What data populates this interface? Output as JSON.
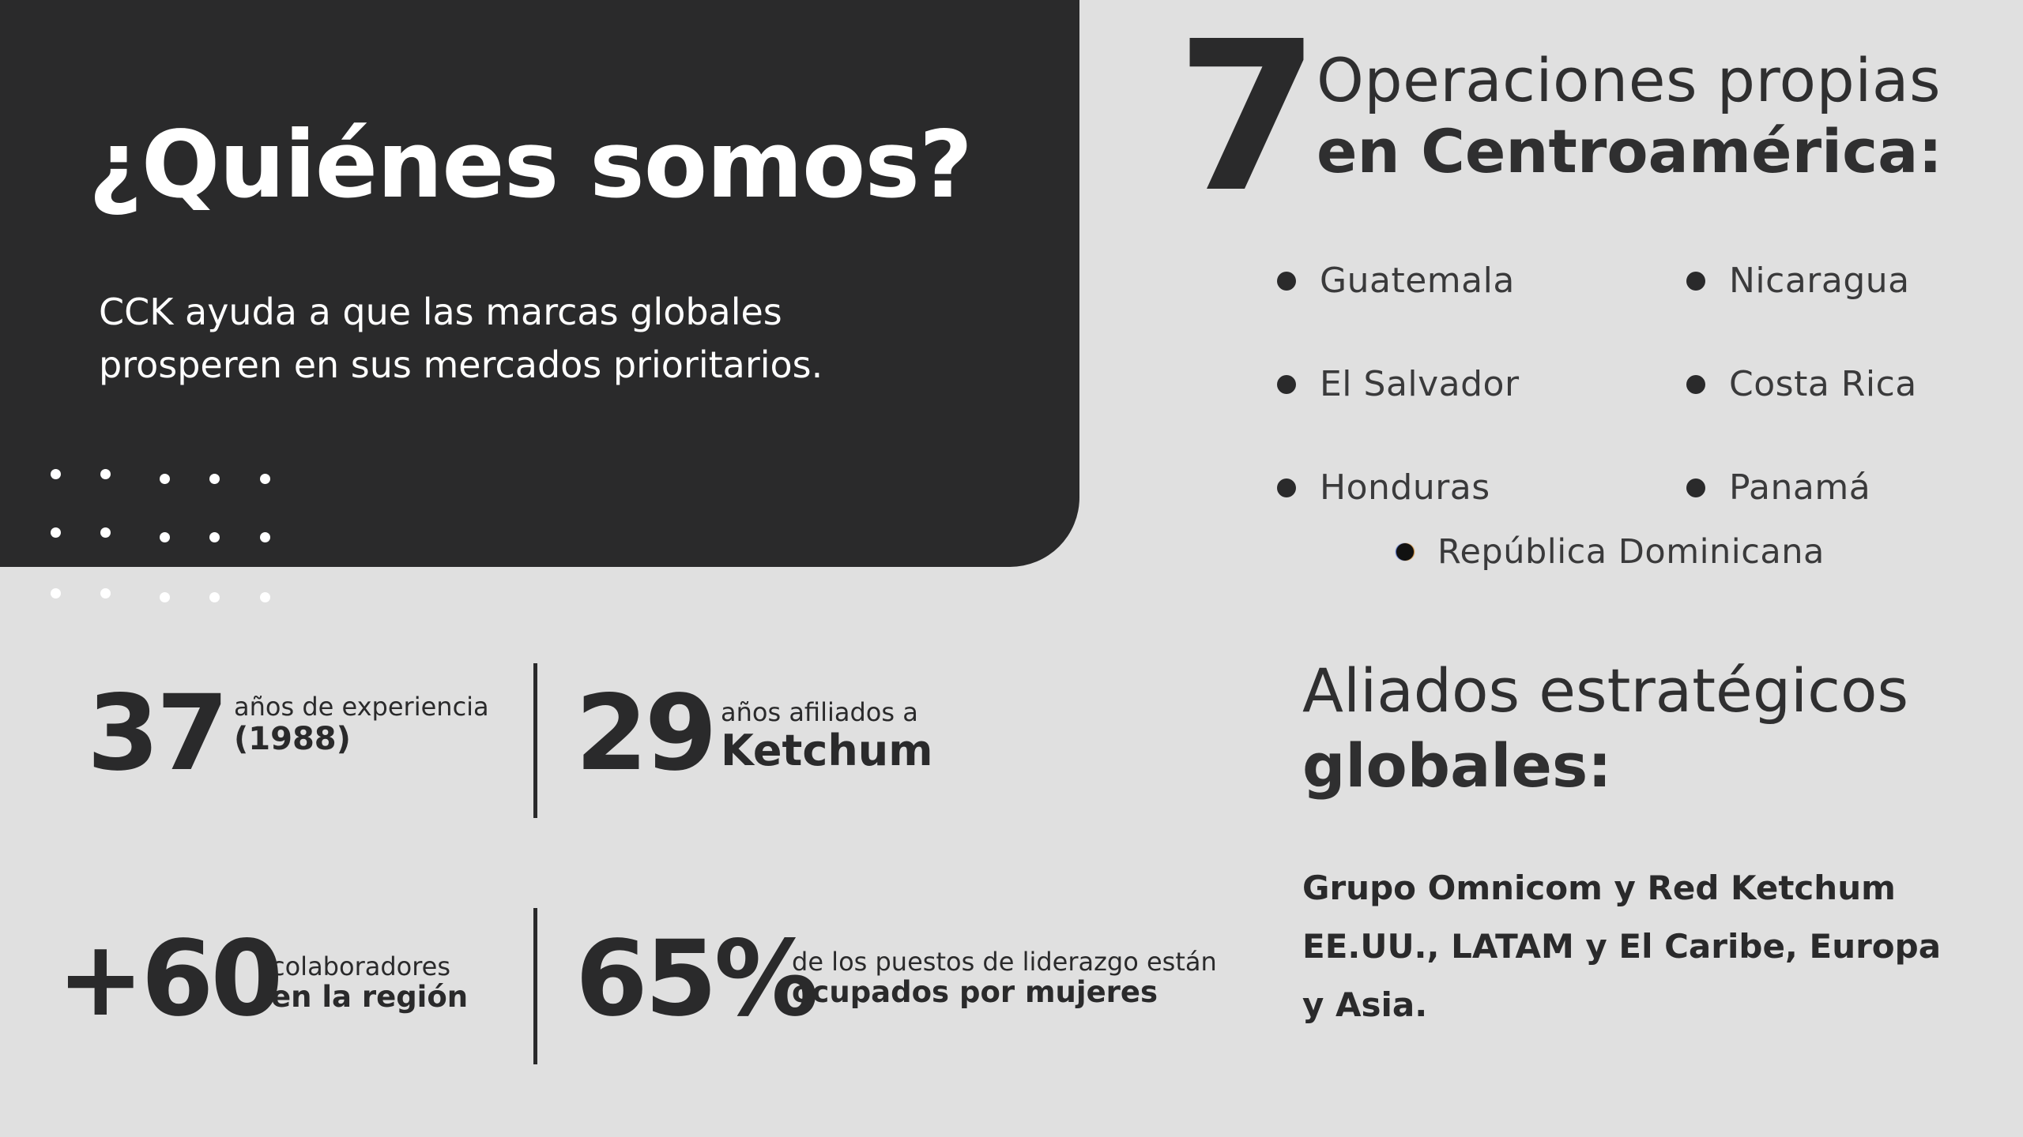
{
  "hero": {
    "title": "¿Quiénes somos?",
    "description": "CCK  ayuda a que las marcas globales\nprosperen en sus mercados prioritarios."
  },
  "operations": {
    "count": "7",
    "title_line1": "Operaciones propias",
    "title_line2": "en Centroamérica:",
    "countries": [
      "Guatemala",
      "Nicaragua",
      "El Salvador",
      "Costa Rica",
      "Honduras",
      "Panamá",
      "República Dominicana"
    ]
  },
  "stats": [
    {
      "number": "37",
      "text1": "años de experiencia",
      "text2": "(1988)"
    },
    {
      "number": "29",
      "text1": "años afiliados a",
      "text2": "Ketchum"
    },
    {
      "number": "+60",
      "text1": "colaboradores",
      "text2": "en la región"
    },
    {
      "number": "65%",
      "text1": "de los puestos de liderazgo están",
      "text2": "ocupados por mujeres"
    }
  ],
  "allies": {
    "title_line1": "Aliados estratégicos",
    "title_line2": "globales:",
    "text": "Grupo Omnicom y Red Ketchum EE.UU., LATAM y El Caribe, Europa y Asia."
  }
}
